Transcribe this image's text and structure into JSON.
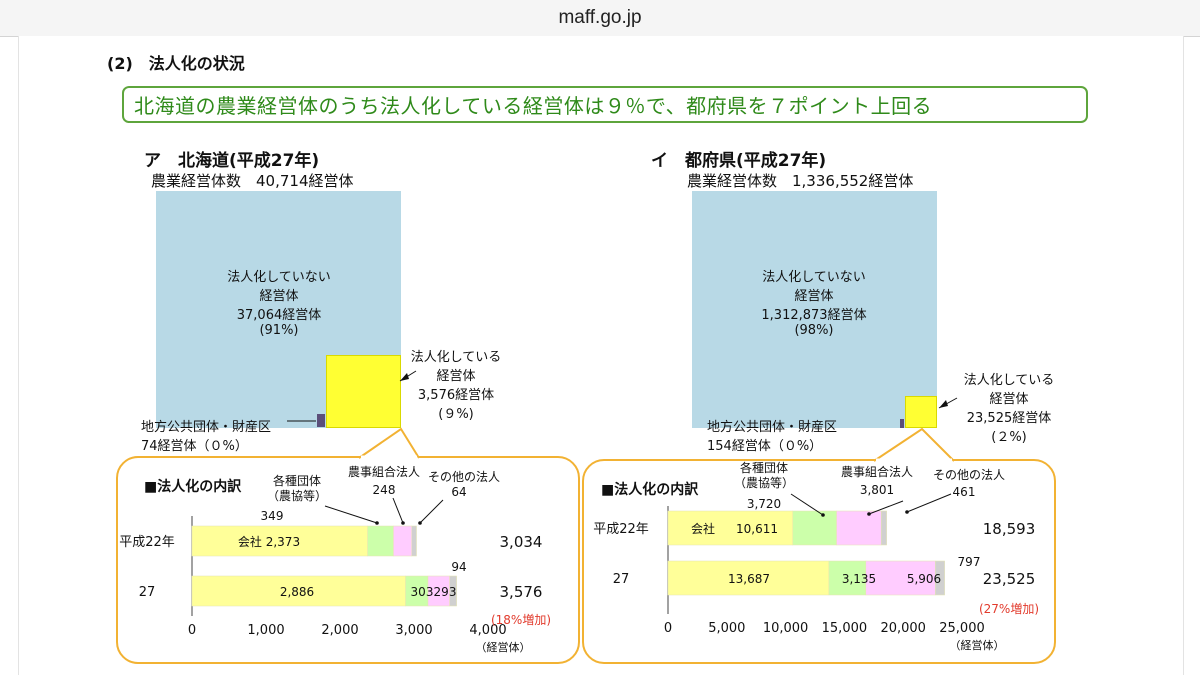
{
  "browser": {
    "url": "maff.go.jp"
  },
  "section_title": "(2)　法人化の状況",
  "headline": "北海道の農業経営体のうち法人化している経営体は９％で、都府県を７ポイント上回る",
  "hokkaido": {
    "title": "ア　北海道(平成27年)",
    "total_label": "農業経営体数　40,714経営体",
    "not_inc": {
      "line1": "法人化していない",
      "line2": "経営体",
      "line3": "37,064経営体",
      "line4": "(91%)"
    },
    "inc": {
      "line1": "法人化している",
      "line2": "経営体",
      "line3": "3,576経営体",
      "line4": "(９%)"
    },
    "public": {
      "line1": "地方公共団体・財産区",
      "line2": "74経営体（０%）"
    },
    "breakdown_title": "■法人化の内訳"
  },
  "prefectures": {
    "title": "イ　都府県(平成27年)",
    "total_label": "農業経営体数　1,336,552経営体",
    "not_inc": {
      "line1": "法人化していない",
      "line2": "経営体",
      "line3": "1,312,873経営体",
      "line4": "(98%)"
    },
    "inc": {
      "line1": "法人化している",
      "line2": "経営体",
      "line3": "23,525経営体",
      "line4": "(２%)"
    },
    "public": {
      "line1": "地方公共団体・財産区",
      "line2": "154経営体（０%）"
    },
    "breakdown_title": "■法人化の内訳"
  },
  "colors": {
    "company": "#ffff99",
    "agri_org": "#ccffaa",
    "coop": "#ffccff",
    "other": "#d0d0d0",
    "outer": "#b8d9e6",
    "incorporated": "#ffff33",
    "public": "#5b4f7a",
    "frame": "#f2b233",
    "headline": "#5ea53c"
  },
  "chart_data": [
    {
      "type": "bar",
      "orientation": "horizontal",
      "stacked": true,
      "title": "■法人化の内訳",
      "categories": [
        "平成22年",
        "27"
      ],
      "series_labels": [
        "会社",
        "各種団体\n（農協等）",
        "農事組合法人",
        "その他の法人"
      ],
      "series": [
        {
          "values": [
            2373,
            2886
          ],
          "labels": [
            "会社 2,373",
            "2,886"
          ]
        },
        {
          "values": [
            349,
            303
          ],
          "labels": [
            "349",
            "303"
          ]
        },
        {
          "values": [
            248,
            293
          ],
          "labels": [
            "248",
            "293"
          ]
        },
        {
          "values": [
            64,
            94
          ],
          "labels": [
            "64",
            "94"
          ]
        }
      ],
      "totals": [
        "3,034",
        "3,576"
      ],
      "change": "(18%増加)",
      "xlim": [
        0,
        4000
      ],
      "xticks": [
        0,
        1000,
        2000,
        3000,
        4000
      ],
      "xtick_labels": [
        "0",
        "1,000",
        "2,000",
        "3,000",
        "4,000"
      ],
      "unit": "（経営体）"
    },
    {
      "type": "bar",
      "orientation": "horizontal",
      "stacked": true,
      "title": "■法人化の内訳",
      "categories": [
        "平成22年",
        "27"
      ],
      "series_labels": [
        "会社",
        "各種団体\n（農協等）",
        "農事組合法人",
        "その他の法人"
      ],
      "series": [
        {
          "values": [
            10611,
            13687
          ],
          "labels": [
            "10,611",
            "13,687"
          ]
        },
        {
          "values": [
            3720,
            3135
          ],
          "labels": [
            "3,720",
            "3,135"
          ]
        },
        {
          "values": [
            3801,
            5906
          ],
          "labels": [
            "3,801",
            "5,906"
          ]
        },
        {
          "values": [
            461,
            797
          ],
          "labels": [
            "461",
            "797"
          ]
        }
      ],
      "company_inline_label": "会社",
      "totals": [
        "18,593",
        "23,525"
      ],
      "change": "(27%増加)",
      "xlim": [
        0,
        25000
      ],
      "xticks": [
        0,
        5000,
        10000,
        15000,
        20000,
        25000
      ],
      "xtick_labels": [
        "0",
        "5,000",
        "10,000",
        "15,000",
        "20,000",
        "25,000"
      ],
      "unit": "（経営体）"
    }
  ]
}
